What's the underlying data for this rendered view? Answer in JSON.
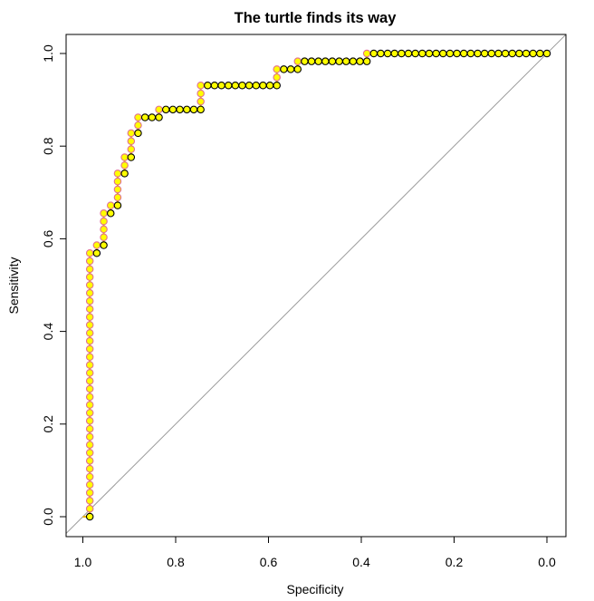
{
  "chart_data": {
    "type": "line",
    "title": "The turtle finds its way",
    "xlabel": "Specificity",
    "ylabel": "Sensitivity",
    "xlim": [
      1.0,
      0.0
    ],
    "ylim": [
      0.0,
      1.0
    ],
    "x_reversed": true,
    "grid": false,
    "x_ticks": [
      "1.0",
      "0.8",
      "0.6",
      "0.4",
      "0.2",
      "0.0"
    ],
    "y_ticks": [
      "0.0",
      "0.2",
      "0.4",
      "0.6",
      "0.8",
      "1.0"
    ],
    "reference_line": {
      "from": [
        1.0,
        0.0
      ],
      "to": [
        0.0,
        1.0
      ],
      "color": "#9a9a9a"
    },
    "step_path_vertices": [
      [
        1.0,
        0.0
      ],
      [
        0.985,
        0.0
      ],
      [
        0.985,
        0.569
      ],
      [
        0.97,
        0.569
      ],
      [
        0.97,
        0.586
      ],
      [
        0.955,
        0.586
      ],
      [
        0.955,
        0.655
      ],
      [
        0.94,
        0.655
      ],
      [
        0.94,
        0.672
      ],
      [
        0.925,
        0.672
      ],
      [
        0.925,
        0.741
      ],
      [
        0.91,
        0.741
      ],
      [
        0.91,
        0.776
      ],
      [
        0.896,
        0.776
      ],
      [
        0.896,
        0.828
      ],
      [
        0.881,
        0.828
      ],
      [
        0.881,
        0.862
      ],
      [
        0.836,
        0.862
      ],
      [
        0.836,
        0.879
      ],
      [
        0.746,
        0.879
      ],
      [
        0.746,
        0.931
      ],
      [
        0.582,
        0.931
      ],
      [
        0.582,
        0.966
      ],
      [
        0.537,
        0.966
      ],
      [
        0.537,
        0.983
      ],
      [
        0.388,
        0.983
      ],
      [
        0.388,
        1.0
      ],
      [
        0.0,
        1.0
      ]
    ],
    "colors": {
      "point_fill": "#ffff00",
      "path_line": "#e8b400",
      "sensitivity_step_border": "#e07090",
      "specificity_step_border": "#000000"
    }
  }
}
